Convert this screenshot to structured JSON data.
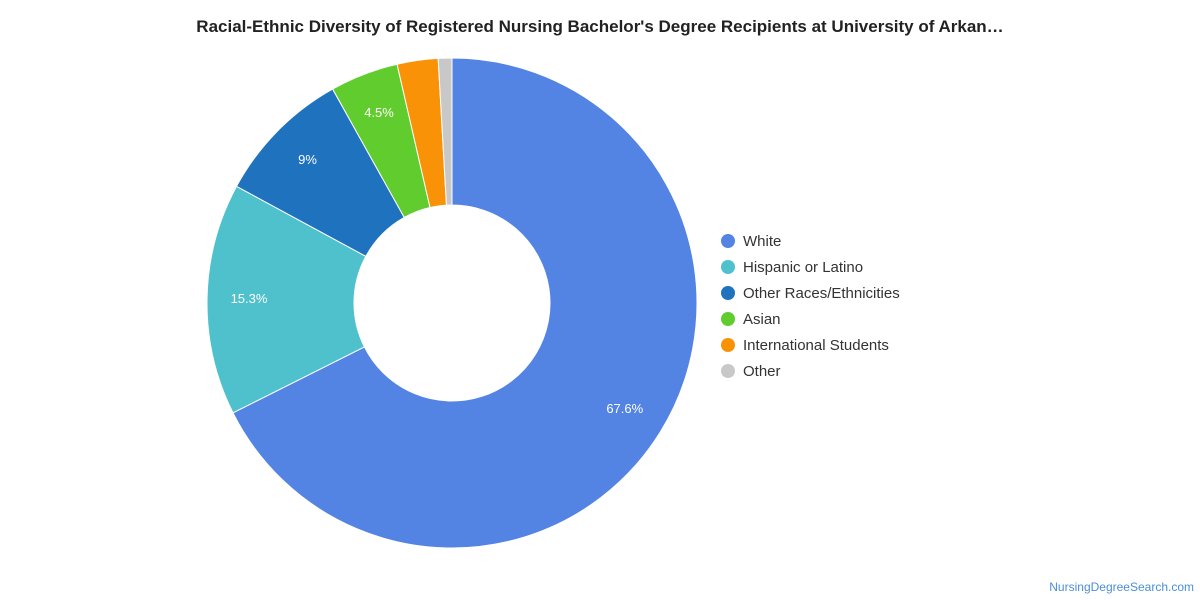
{
  "chart_data": {
    "type": "pie",
    "title": "Racial-Ethnic Diversity of Registered Nursing Bachelor's Degree Recipients at University of Arkan…",
    "series": [
      {
        "name": "White",
        "value": 67.6,
        "label": "67.6%",
        "color": "#5384e3"
      },
      {
        "name": "Hispanic or Latino",
        "value": 15.3,
        "label": "15.3%",
        "color": "#4fc1cd"
      },
      {
        "name": "Other Races/Ethnicities",
        "value": 9.0,
        "label": "9%",
        "color": "#1f72bd"
      },
      {
        "name": "Asian",
        "value": 4.5,
        "label": "4.5%",
        "color": "#61cc2d"
      },
      {
        "name": "International Students",
        "value": 2.7,
        "label": "",
        "color": "#f99207"
      },
      {
        "name": "Other",
        "value": 0.9,
        "label": "",
        "color": "#c8c8c8"
      }
    ],
    "legend_position": "right"
  },
  "watermark": "NursingDegreeSearch.com"
}
